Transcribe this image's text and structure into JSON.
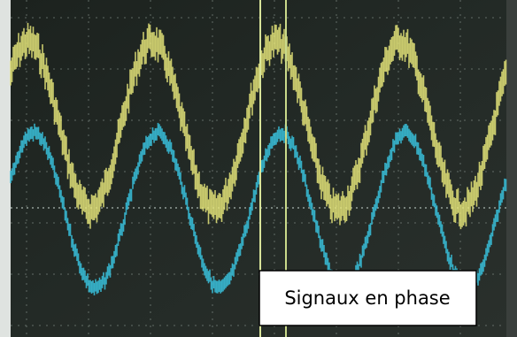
{
  "label": "Signaux en phase"
}
